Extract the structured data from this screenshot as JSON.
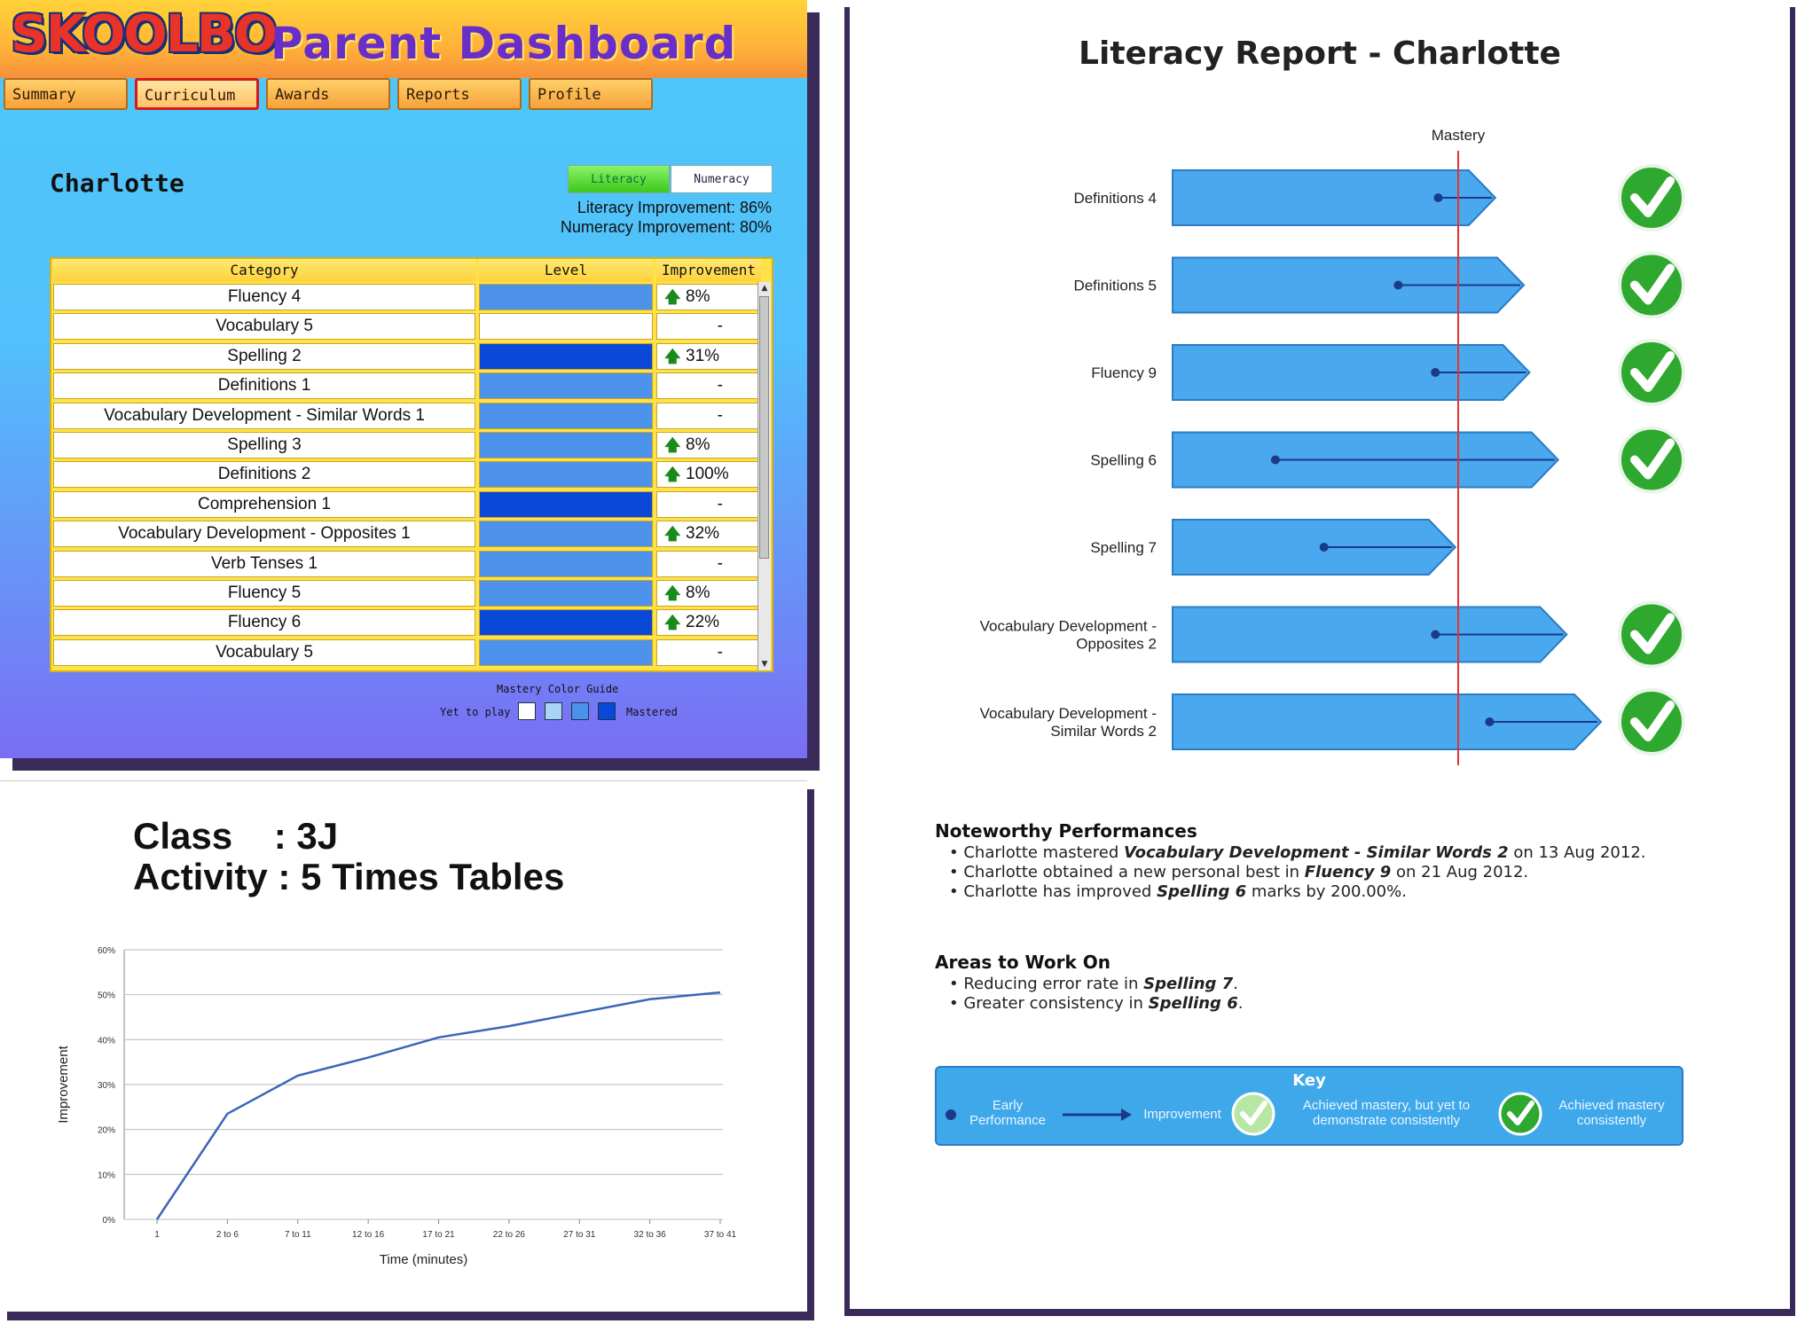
{
  "dashboard": {
    "logo": "SKOOLBO",
    "title": "Parent Dashboard",
    "nav": [
      "Summary",
      "Curriculum",
      "Awards",
      "Reports",
      "Profile"
    ],
    "active_tab": "Curriculum",
    "student": "Charlotte",
    "toggle": {
      "literacy": "Literacy",
      "numeracy": "Numeracy"
    },
    "literacy_improvement": "Literacy Improvement: 86%",
    "numeracy_improvement": "Numeracy Improvement: 80%",
    "table": {
      "headers": [
        "Category",
        "Level",
        "Improvement"
      ],
      "rows": [
        {
          "category": "Fluency 4",
          "level": 3,
          "improvement": "8%",
          "up": true
        },
        {
          "category": "Vocabulary 5",
          "level": 1,
          "improvement": "-",
          "up": false
        },
        {
          "category": "Spelling 2",
          "level": 4,
          "improvement": "31%",
          "up": true
        },
        {
          "category": "Definitions 1",
          "level": 3,
          "improvement": "-",
          "up": false
        },
        {
          "category": "Vocabulary Development - Similar Words 1",
          "level": 3,
          "improvement": "-",
          "up": false
        },
        {
          "category": "Spelling 3",
          "level": 3,
          "improvement": "8%",
          "up": true
        },
        {
          "category": "Definitions 2",
          "level": 3,
          "improvement": "100%",
          "up": true
        },
        {
          "category": "Comprehension 1",
          "level": 4,
          "improvement": "-",
          "up": false
        },
        {
          "category": "Vocabulary Development - Opposites 1",
          "level": 3,
          "improvement": "32%",
          "up": true
        },
        {
          "category": "Verb Tenses 1",
          "level": 3,
          "improvement": "-",
          "up": false
        },
        {
          "category": "Fluency 5",
          "level": 3,
          "improvement": "8%",
          "up": true
        },
        {
          "category": "Fluency 6",
          "level": 4,
          "improvement": "22%",
          "up": true
        },
        {
          "category": "Vocabulary 5",
          "level": 3,
          "improvement": "-",
          "up": false
        }
      ]
    },
    "mastery_guide": {
      "title": "Mastery Color Guide",
      "low": "Yet to play",
      "high": "Mastered",
      "colors": [
        "#ffffff",
        "#a9d3f7",
        "#4c92ea",
        "#0a48d8"
      ]
    }
  },
  "class_panel": {
    "class_line": "Class    : 3J",
    "activity_line": "Activity : 5 Times Tables"
  },
  "chart_data": [
    {
      "type": "line",
      "x": [
        "1",
        "2 to 6",
        "7 to 11",
        "12 to 16",
        "17 to 21",
        "22 to 26",
        "27 to 31",
        "32 to 36",
        "37 to 41"
      ],
      "values": [
        0,
        23.5,
        32,
        36,
        40.5,
        43,
        46,
        49,
        50.5
      ],
      "xlabel": "Time (minutes)",
      "ylabel": "Improvement",
      "yticks": [
        "0%",
        "10%",
        "20%",
        "30%",
        "40%",
        "50%",
        "60%"
      ],
      "ylim": [
        0,
        60
      ],
      "grid": true,
      "color": "#3a66b8"
    }
  ],
  "report": {
    "title": "Literacy Report - Charlotte",
    "mastery_label": "Mastery",
    "skills": [
      {
        "label": [
          "Definitions 4"
        ],
        "early": 0.93,
        "end": 1.13,
        "mastered": true
      },
      {
        "label": [
          "Definitions 5"
        ],
        "early": 0.79,
        "end": 1.23,
        "mastered": true
      },
      {
        "label": [
          "Fluency 9"
        ],
        "early": 0.92,
        "end": 1.25,
        "mastered": true
      },
      {
        "label": [
          "Spelling 6"
        ],
        "early": 0.36,
        "end": 1.35,
        "mastered": true
      },
      {
        "label": [
          "Spelling 7"
        ],
        "early": 0.53,
        "end": 0.99,
        "mastered": false
      },
      {
        "label": [
          "Vocabulary Development -",
          "Opposites 2"
        ],
        "early": 0.92,
        "end": 1.38,
        "mastered": true
      },
      {
        "label": [
          "Vocabulary Development -",
          "Similar Words 2"
        ],
        "early": 1.11,
        "end": 1.5,
        "mastered": true
      }
    ],
    "noteworthy_title": "Noteworthy Performances",
    "noteworthy": [
      [
        "Charlotte mastered ",
        "Vocabulary Development - Similar Words 2",
        " on 13 Aug 2012."
      ],
      [
        "Charlotte obtained a new personal best in ",
        "Fluency 9",
        " on 21 Aug 2012."
      ],
      [
        "Charlotte has improved ",
        "Spelling 6",
        " marks by 200.00%."
      ]
    ],
    "areas_title": "Areas to Work On",
    "areas": [
      [
        "Reducing error rate in ",
        "Spelling 7",
        "."
      ],
      [
        "Greater consistency in ",
        "Spelling 6",
        "."
      ]
    ],
    "key": {
      "title": "Key",
      "early": "Early Performance",
      "improvement": "Improvement",
      "mastery_but": "Achieved mastery, but yet to demonstrate consistently",
      "mastery_consistent": "Achieved mastery consistently"
    },
    "colors": {
      "bar": "#4aa8ee",
      "bar_edge": "#2a7cc4",
      "mastery_line": "#e23232",
      "check": "#2fa82f"
    }
  }
}
